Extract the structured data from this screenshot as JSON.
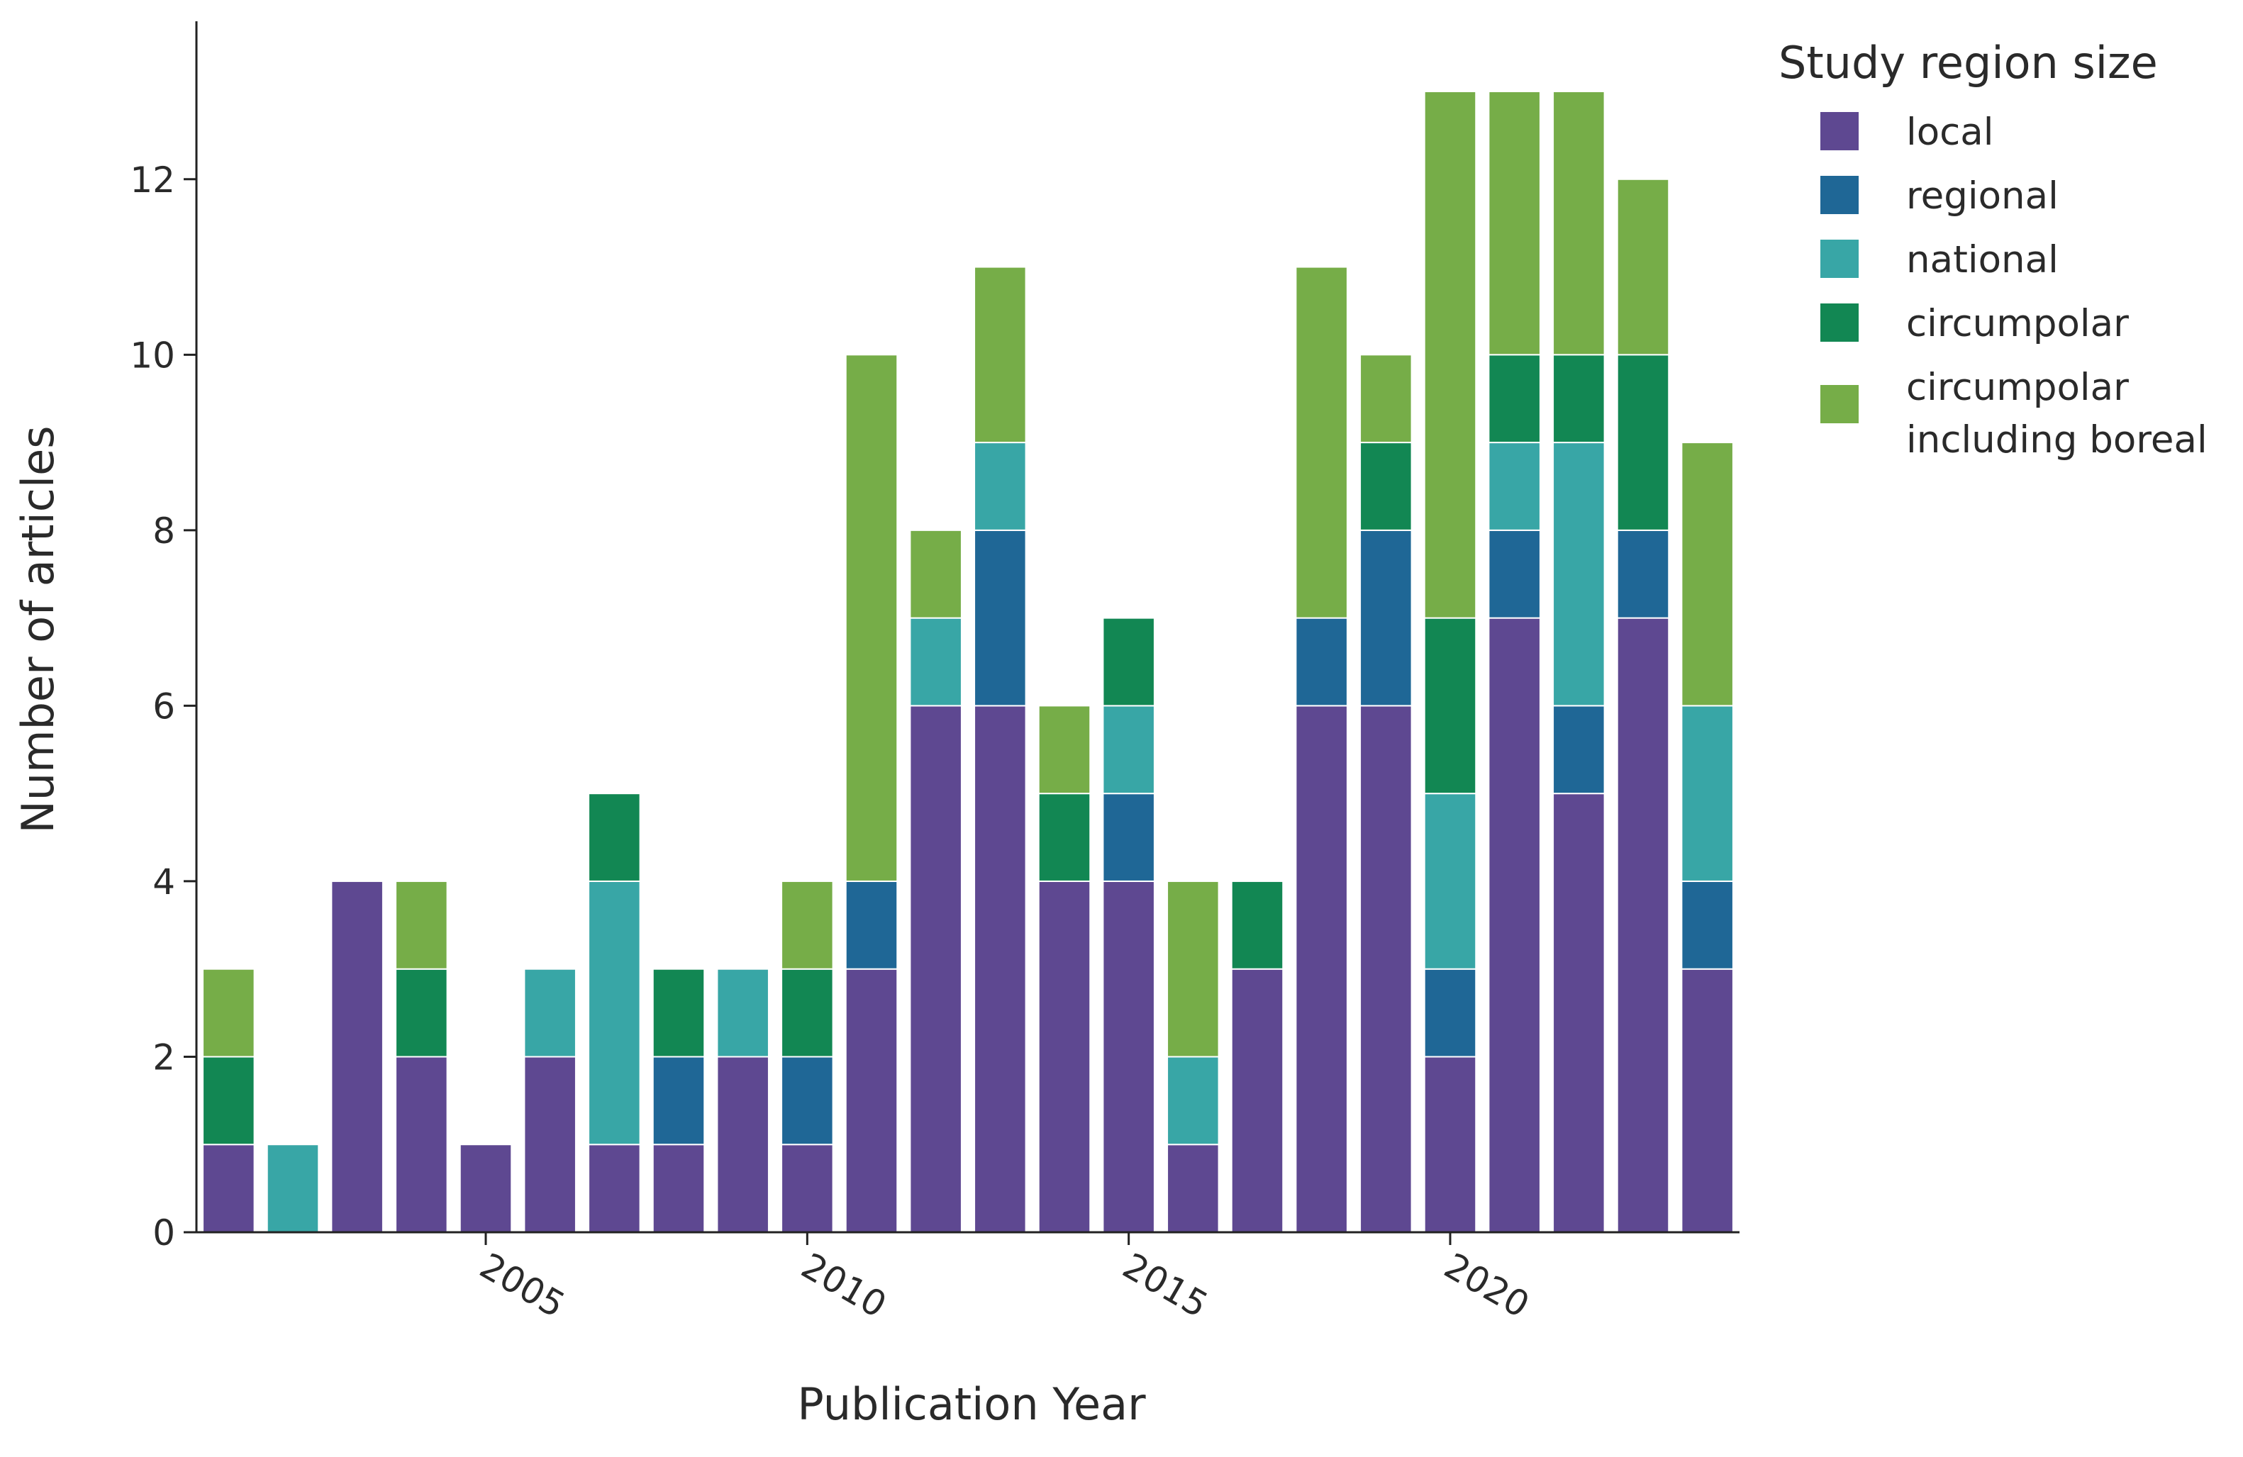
{
  "chart_data": {
    "type": "bar",
    "stacked": true,
    "title": "",
    "xlabel": "Publication Year",
    "ylabel": "Number of articles",
    "x": [
      2001,
      2002,
      2003,
      2004,
      2005,
      2006,
      2007,
      2008,
      2009,
      2010,
      2011,
      2012,
      2013,
      2014,
      2015,
      2016,
      2017,
      2018,
      2019,
      2020,
      2021,
      2022,
      2023,
      2024
    ],
    "xticks": [
      "2005",
      "2010",
      "2015",
      "2020"
    ],
    "xtick_values": [
      2005,
      2010,
      2015,
      2020
    ],
    "xlim": [
      2000.5,
      2024.5
    ],
    "yticks": [
      "0",
      "2",
      "4",
      "6",
      "8",
      "10",
      "12"
    ],
    "ytick_values": [
      0,
      2,
      4,
      6,
      8,
      10,
      12
    ],
    "ylim": [
      0,
      13.8
    ],
    "legend_title": "Study region size",
    "legend_position": "top-right",
    "series": [
      {
        "name": "local",
        "label_lines": [
          "local"
        ],
        "color": "#5e4891",
        "values": [
          1,
          0,
          4,
          2,
          1,
          2,
          1,
          1,
          2,
          1,
          3,
          6,
          6,
          4,
          4,
          1,
          3,
          6,
          6,
          2,
          7,
          5,
          7,
          3
        ]
      },
      {
        "name": "regional",
        "label_lines": [
          "regional"
        ],
        "color": "#1f6796",
        "values": [
          0,
          0,
          0,
          0,
          0,
          0,
          0,
          1,
          0,
          1,
          1,
          0,
          2,
          0,
          1,
          0,
          0,
          1,
          2,
          1,
          1,
          1,
          1,
          1
        ]
      },
      {
        "name": "national",
        "label_lines": [
          "national"
        ],
        "color": "#38a6a6",
        "values": [
          0,
          1,
          0,
          0,
          0,
          1,
          3,
          0,
          1,
          0,
          0,
          1,
          1,
          0,
          1,
          1,
          0,
          0,
          0,
          2,
          1,
          3,
          0,
          2
        ]
      },
      {
        "name": "circumpolar",
        "label_lines": [
          "circumpolar"
        ],
        "color": "#128753",
        "values": [
          1,
          0,
          0,
          1,
          0,
          0,
          1,
          1,
          0,
          1,
          0,
          0,
          0,
          1,
          1,
          0,
          1,
          0,
          1,
          2,
          1,
          1,
          2,
          0
        ]
      },
      {
        "name": "circumpolar including boreal",
        "label_lines": [
          "circumpolar",
          "including boreal"
        ],
        "color": "#76ad48",
        "values": [
          1,
          0,
          0,
          1,
          0,
          0,
          0,
          0,
          0,
          1,
          6,
          1,
          2,
          1,
          0,
          2,
          0,
          4,
          1,
          6,
          3,
          3,
          2,
          3
        ]
      }
    ]
  }
}
